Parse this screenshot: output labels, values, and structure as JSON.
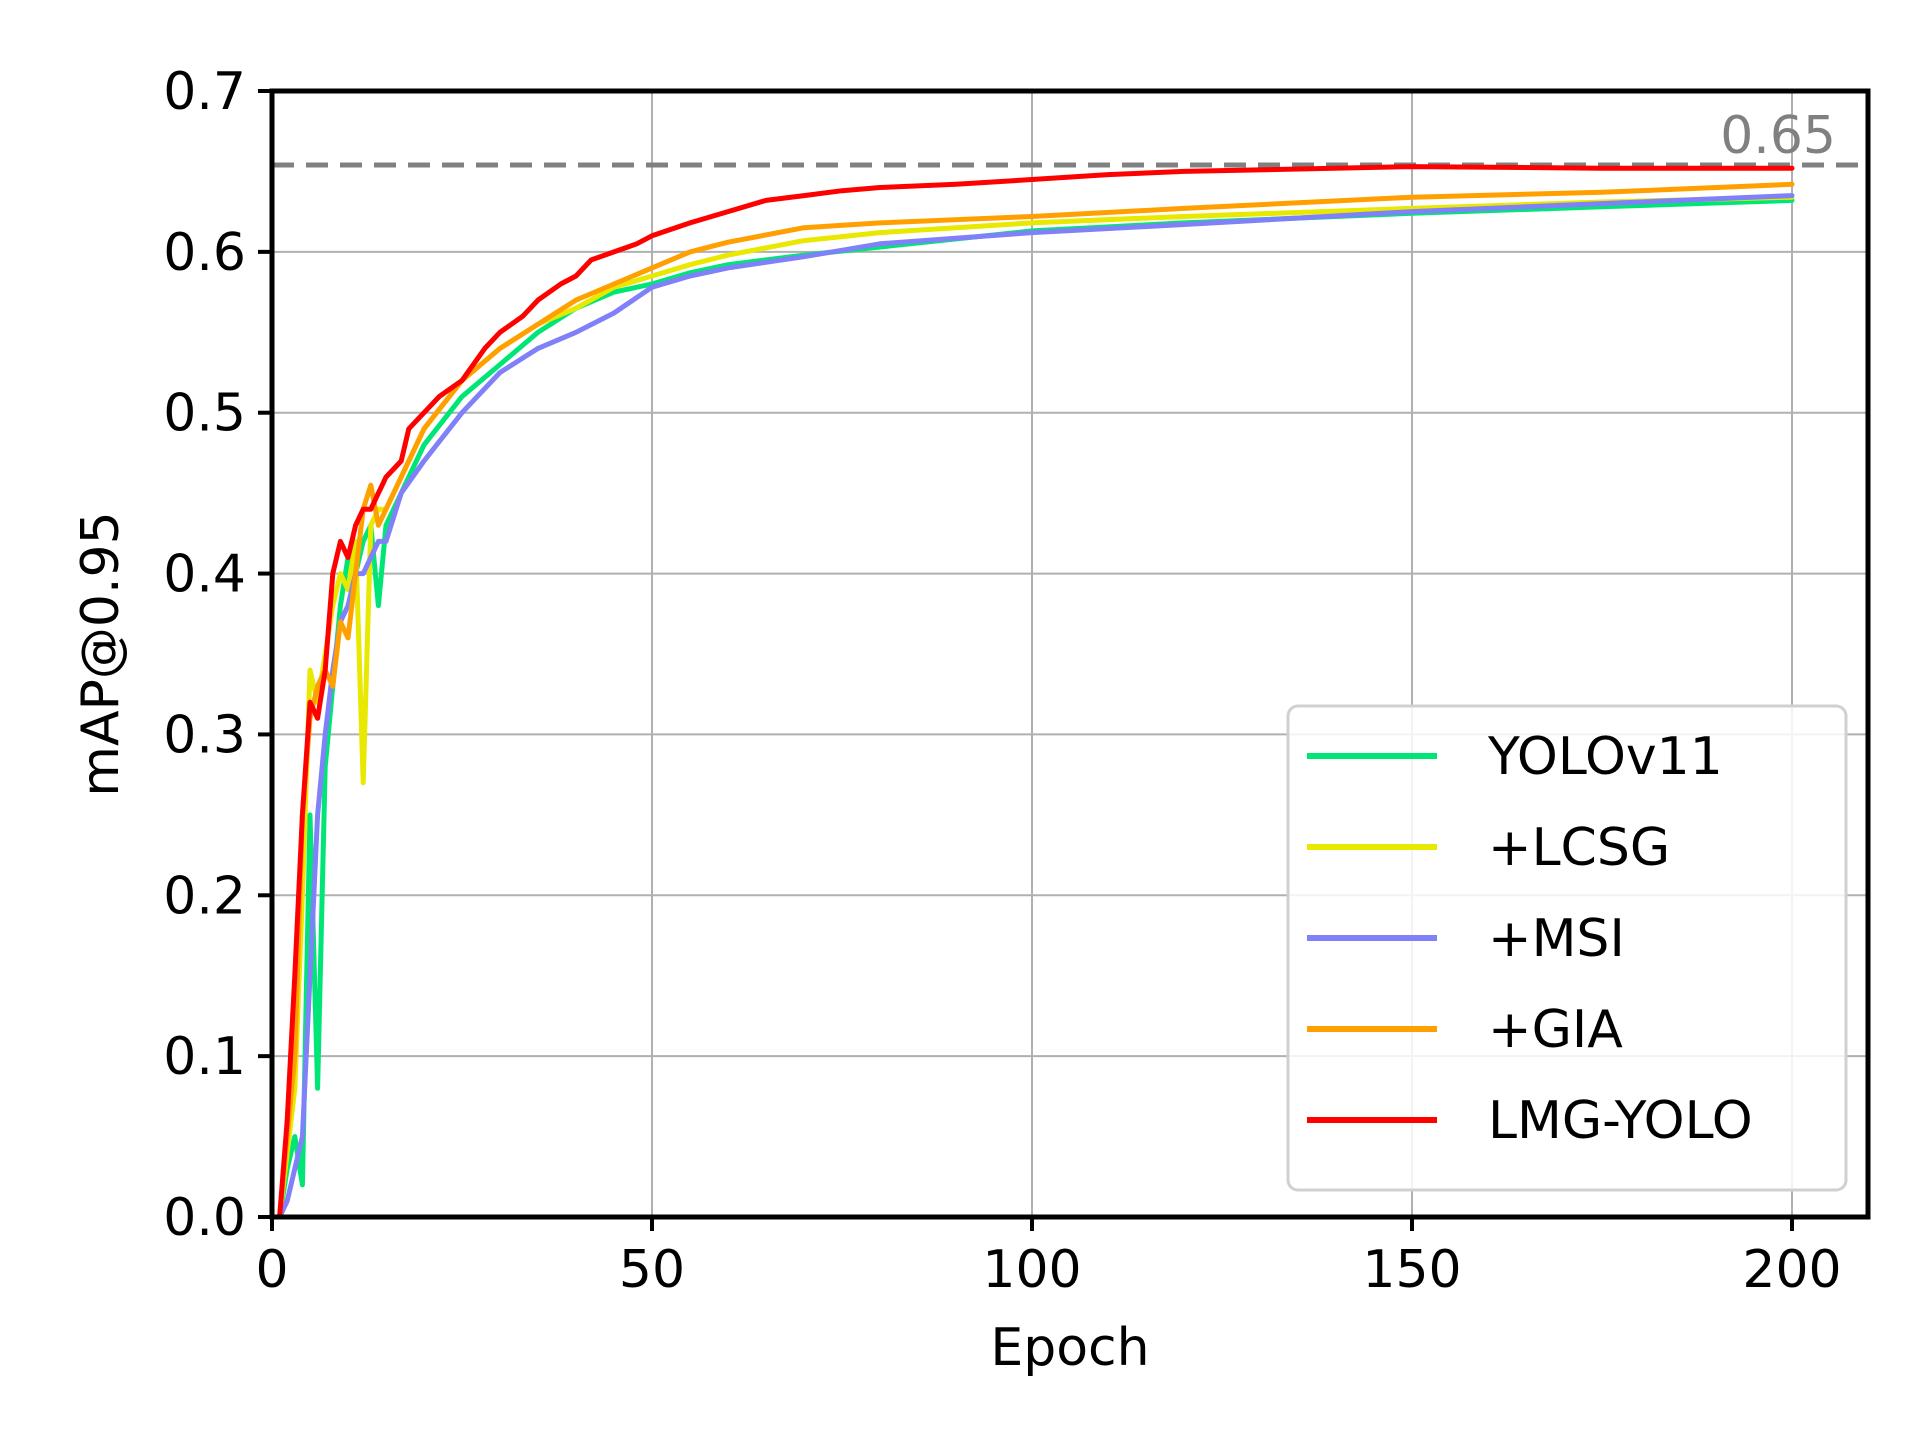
{
  "chart_data": {
    "type": "line",
    "title": "",
    "xlabel": "Epoch",
    "ylabel": "mAP@0.95",
    "xlim": [
      0,
      210
    ],
    "ylim": [
      0.0,
      0.7
    ],
    "xticks": [
      "0",
      "50",
      "100",
      "150",
      "200"
    ],
    "xtick_values": [
      0,
      50,
      100,
      150,
      200
    ],
    "yticks": [
      "0.0",
      "0.1",
      "0.2",
      "0.3",
      "0.4",
      "0.5",
      "0.6",
      "0.7"
    ],
    "ytick_values": [
      0.0,
      0.1,
      0.2,
      0.3,
      0.4,
      0.5,
      0.6,
      0.7
    ],
    "grid": true,
    "legend_position": "lower-right",
    "reference_line": {
      "value": 0.654,
      "label": "0.65",
      "color": "#808080",
      "style": "dashed"
    },
    "series": [
      {
        "name": "YOLOv11",
        "color": "#00e676",
        "points": [
          [
            1,
            0.0
          ],
          [
            2,
            0.03
          ],
          [
            3,
            0.05
          ],
          [
            4,
            0.02
          ],
          [
            5,
            0.25
          ],
          [
            6,
            0.08
          ],
          [
            7,
            0.28
          ],
          [
            8,
            0.33
          ],
          [
            9,
            0.38
          ],
          [
            10,
            0.41
          ],
          [
            11,
            0.4
          ],
          [
            12,
            0.42
          ],
          [
            13,
            0.43
          ],
          [
            14,
            0.38
          ],
          [
            15,
            0.43
          ],
          [
            17,
            0.45
          ],
          [
            20,
            0.48
          ],
          [
            25,
            0.51
          ],
          [
            30,
            0.53
          ],
          [
            35,
            0.55
          ],
          [
            40,
            0.565
          ],
          [
            45,
            0.575
          ],
          [
            50,
            0.58
          ],
          [
            55,
            0.587
          ],
          [
            60,
            0.592
          ],
          [
            70,
            0.598
          ],
          [
            80,
            0.603
          ],
          [
            100,
            0.613
          ],
          [
            120,
            0.618
          ],
          [
            150,
            0.624
          ],
          [
            175,
            0.628
          ],
          [
            200,
            0.632
          ]
        ]
      },
      {
        "name": "+LCSG",
        "color": "#e8e800",
        "points": [
          [
            1,
            0.0
          ],
          [
            2,
            0.04
          ],
          [
            3,
            0.08
          ],
          [
            4,
            0.2
          ],
          [
            5,
            0.34
          ],
          [
            6,
            0.32
          ],
          [
            7,
            0.35
          ],
          [
            8,
            0.38
          ],
          [
            9,
            0.4
          ],
          [
            10,
            0.39
          ],
          [
            11,
            0.42
          ],
          [
            12,
            0.27
          ],
          [
            13,
            0.43
          ],
          [
            14,
            0.44
          ],
          [
            15,
            0.44
          ],
          [
            17,
            0.46
          ],
          [
            20,
            0.49
          ],
          [
            25,
            0.52
          ],
          [
            30,
            0.54
          ],
          [
            35,
            0.555
          ],
          [
            40,
            0.565
          ],
          [
            45,
            0.578
          ],
          [
            50,
            0.585
          ],
          [
            55,
            0.592
          ],
          [
            60,
            0.598
          ],
          [
            70,
            0.607
          ],
          [
            80,
            0.612
          ],
          [
            100,
            0.618
          ],
          [
            120,
            0.622
          ],
          [
            150,
            0.627
          ],
          [
            175,
            0.631
          ],
          [
            200,
            0.634
          ]
        ]
      },
      {
        "name": "+MSI",
        "color": "#8080f8",
        "points": [
          [
            1,
            0.0
          ],
          [
            2,
            0.01
          ],
          [
            3,
            0.03
          ],
          [
            4,
            0.05
          ],
          [
            5,
            0.15
          ],
          [
            6,
            0.25
          ],
          [
            7,
            0.3
          ],
          [
            8,
            0.34
          ],
          [
            9,
            0.37
          ],
          [
            10,
            0.38
          ],
          [
            11,
            0.4
          ],
          [
            12,
            0.4
          ],
          [
            13,
            0.41
          ],
          [
            14,
            0.42
          ],
          [
            15,
            0.42
          ],
          [
            17,
            0.45
          ],
          [
            20,
            0.47
          ],
          [
            25,
            0.5
          ],
          [
            30,
            0.525
          ],
          [
            35,
            0.54
          ],
          [
            40,
            0.55
          ],
          [
            45,
            0.562
          ],
          [
            50,
            0.578
          ],
          [
            55,
            0.585
          ],
          [
            60,
            0.59
          ],
          [
            70,
            0.597
          ],
          [
            80,
            0.605
          ],
          [
            100,
            0.612
          ],
          [
            120,
            0.617
          ],
          [
            150,
            0.625
          ],
          [
            175,
            0.63
          ],
          [
            200,
            0.635
          ]
        ]
      },
      {
        "name": "+GIA",
        "color": "#ffa000",
        "points": [
          [
            1,
            0.0
          ],
          [
            2,
            0.05
          ],
          [
            3,
            0.1
          ],
          [
            4,
            0.25
          ],
          [
            5,
            0.31
          ],
          [
            6,
            0.33
          ],
          [
            7,
            0.34
          ],
          [
            8,
            0.33
          ],
          [
            9,
            0.37
          ],
          [
            10,
            0.36
          ],
          [
            11,
            0.4
          ],
          [
            12,
            0.44
          ],
          [
            13,
            0.455
          ],
          [
            14,
            0.43
          ],
          [
            15,
            0.44
          ],
          [
            17,
            0.46
          ],
          [
            20,
            0.49
          ],
          [
            25,
            0.52
          ],
          [
            30,
            0.54
          ],
          [
            35,
            0.555
          ],
          [
            40,
            0.57
          ],
          [
            45,
            0.58
          ],
          [
            50,
            0.59
          ],
          [
            55,
            0.6
          ],
          [
            60,
            0.606
          ],
          [
            70,
            0.615
          ],
          [
            80,
            0.618
          ],
          [
            100,
            0.622
          ],
          [
            120,
            0.627
          ],
          [
            150,
            0.634
          ],
          [
            175,
            0.637
          ],
          [
            200,
            0.642
          ]
        ]
      },
      {
        "name": "LMG-YOLO",
        "color": "#ff0000",
        "points": [
          [
            1,
            0.0
          ],
          [
            2,
            0.06
          ],
          [
            3,
            0.15
          ],
          [
            4,
            0.25
          ],
          [
            5,
            0.32
          ],
          [
            6,
            0.31
          ],
          [
            7,
            0.34
          ],
          [
            8,
            0.4
          ],
          [
            9,
            0.42
          ],
          [
            10,
            0.41
          ],
          [
            11,
            0.43
          ],
          [
            12,
            0.44
          ],
          [
            13,
            0.44
          ],
          [
            14,
            0.45
          ],
          [
            15,
            0.46
          ],
          [
            17,
            0.47
          ],
          [
            18,
            0.49
          ],
          [
            20,
            0.5
          ],
          [
            22,
            0.51
          ],
          [
            25,
            0.52
          ],
          [
            28,
            0.54
          ],
          [
            30,
            0.55
          ],
          [
            33,
            0.56
          ],
          [
            35,
            0.57
          ],
          [
            38,
            0.58
          ],
          [
            40,
            0.585
          ],
          [
            42,
            0.595
          ],
          [
            45,
            0.6
          ],
          [
            48,
            0.605
          ],
          [
            50,
            0.61
          ],
          [
            55,
            0.618
          ],
          [
            60,
            0.625
          ],
          [
            65,
            0.632
          ],
          [
            70,
            0.635
          ],
          [
            75,
            0.638
          ],
          [
            80,
            0.64
          ],
          [
            90,
            0.642
          ],
          [
            100,
            0.645
          ],
          [
            110,
            0.648
          ],
          [
            120,
            0.65
          ],
          [
            150,
            0.653
          ],
          [
            175,
            0.652
          ],
          [
            200,
            0.652
          ]
        ]
      }
    ]
  }
}
